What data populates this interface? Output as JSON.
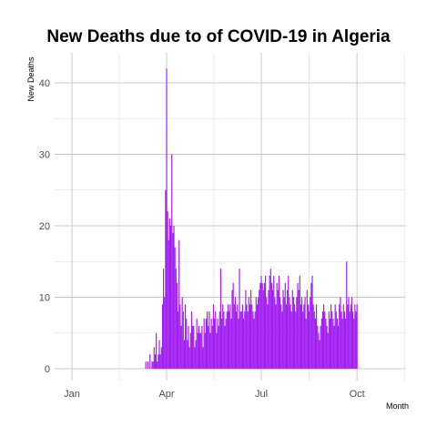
{
  "chart_data": {
    "type": "bar",
    "title": "New Deaths due to of COVID-19 in Algeria",
    "xlabel": "Month",
    "ylabel": "New Deaths",
    "x_start": "2020-01-01",
    "x_ticks": [
      "Jan",
      "Apr",
      "Jul",
      "Oct"
    ],
    "y_ticks": [
      0,
      10,
      20,
      30,
      40
    ],
    "ylim": [
      -2,
      45
    ],
    "grid": true,
    "bar_color": "#A020F0",
    "data_start": "2020-03-12",
    "values": [
      1,
      0,
      1,
      0,
      2,
      0,
      1,
      1,
      3,
      2,
      5,
      1,
      2,
      4,
      2,
      3,
      9,
      14,
      10,
      25,
      42,
      22,
      18,
      21,
      20,
      30,
      19,
      20,
      17,
      14,
      12,
      8,
      18,
      9,
      6,
      10,
      8,
      4,
      9,
      7,
      4,
      6,
      3,
      5,
      8,
      6,
      6,
      3,
      4,
      7,
      5,
      6,
      5,
      5,
      6,
      3,
      7,
      5,
      7,
      8,
      6,
      8,
      5,
      7,
      6,
      9,
      7,
      8,
      5,
      7,
      6,
      8,
      14,
      7,
      9,
      8,
      6,
      7,
      8,
      9,
      8,
      9,
      7,
      11,
      12,
      9,
      10,
      8,
      9,
      7,
      14,
      8,
      8,
      9,
      7,
      8,
      11,
      9,
      8,
      10,
      9,
      11,
      9,
      8,
      7,
      8,
      10,
      9,
      10,
      11,
      12,
      13,
      12,
      11,
      12,
      13,
      10,
      9,
      11,
      13,
      14,
      12,
      11,
      13,
      10,
      9,
      12,
      11,
      13,
      10,
      9,
      8,
      11,
      10,
      12,
      9,
      11,
      13,
      10,
      9,
      8,
      11,
      10,
      9,
      8,
      10,
      12,
      11,
      13,
      9,
      10,
      8,
      9,
      10,
      7,
      11,
      9,
      8,
      10,
      12,
      13,
      9,
      8,
      7,
      9,
      6,
      5,
      4,
      6,
      7,
      8,
      9,
      8,
      7,
      6,
      5,
      8,
      7,
      9,
      8,
      7,
      6,
      9,
      8,
      7,
      6,
      9,
      10,
      8,
      7,
      9,
      8,
      7,
      15,
      9,
      10,
      8,
      9,
      10,
      8,
      7,
      9,
      8,
      9
    ]
  }
}
